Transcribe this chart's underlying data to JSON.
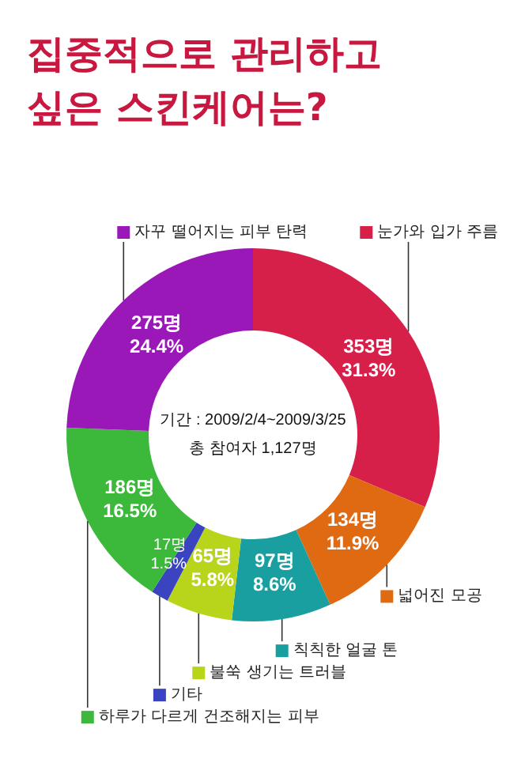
{
  "chart_data": {
    "type": "donut",
    "title": "집중적으로 관리하고 싶은 스킨케어는?",
    "categories": [
      "눈가와 입가 주름",
      "넓어진 모공",
      "칙칙한 얼굴 톤",
      "불쑥 생기는 트러블",
      "기타",
      "하루가 다르게 건조해지는 피부",
      "자꾸 떨어지는 피부 탄력"
    ],
    "values": [
      353,
      134,
      97,
      65,
      17,
      186,
      275
    ],
    "value_labels": [
      "353명\n31.3%",
      "134명\n11.9%",
      "97명\n8.6%",
      "65명\n5.8%",
      "17명\n1.5%",
      "186명\n16.5%",
      "275명\n24.4%"
    ],
    "colors": [
      "#d6204a",
      "#e06a12",
      "#1a9fa0",
      "#b8d51b",
      "#3a44c0",
      "#3cb93a",
      "#9a18b8"
    ],
    "legend": "bottom",
    "annotations": [
      "기간 : 2009/2/4~2009/3/25",
      "총 참여자 1,127명"
    ]
  }
}
